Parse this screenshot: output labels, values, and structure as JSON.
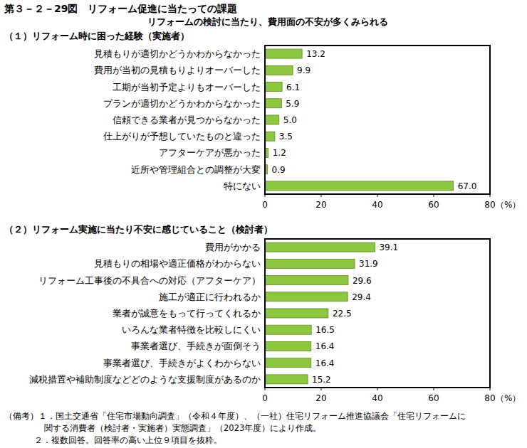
{
  "figure": {
    "title": "第３－２－29図　リフォーム促進に当たっての課題",
    "subtitle": "リフォームの検討に当たり、費用面の不安が多くみられる",
    "notes": [
      "（備考）１．国土交通省「住宅市場動向調査」（令和４年度）、（一社）住宅リフォーム推進協議会「住宅リフォームに",
      "関する消費者（検討者・実施者）実態調査」（2023年度）により作成。",
      "２．複数回答。回答率の高い上位９項目を抜粋。"
    ]
  },
  "chart_data": [
    {
      "type": "bar",
      "orientation": "horizontal",
      "title": "（１）リフォーム時に困った経験（実施者）",
      "categories": [
        "見積もりが適切かどうかわからなかった",
        "費用が当初の見積もりよりオーバーした",
        "工期が当初予定よりもオーバーした",
        "プランが適切かどうかわからなかった",
        "信頼できる業者が見つからなかった",
        "仕上がりが予想していたものと違った",
        "アフターケアが悪かった",
        "近所や管理組合との調整が大変",
        "特にない"
      ],
      "values": [
        13.2,
        9.9,
        6.1,
        5.9,
        5.0,
        3.5,
        1.2,
        0.9,
        67.0
      ],
      "value_labels": [
        "13.2",
        "9.9",
        "6.1",
        "5.9",
        "5.0",
        "3.5",
        "1.2",
        "0.9",
        "67.0"
      ],
      "color": "#8dc63f",
      "xlim": [
        0,
        80
      ],
      "xticks": [
        0,
        20,
        40,
        60,
        80
      ],
      "xlabel": "（%）",
      "grid": false,
      "data_labels": true
    },
    {
      "type": "bar",
      "orientation": "horizontal",
      "title": "（２）リフォーム実施に当たり不安に感じていること（検討者）",
      "categories": [
        "費用がかかる",
        "見積もりの相場や適正価格がわからない",
        "リフォーム工事後の不具合への対応（アフターケア）",
        "施工が適正に行われるか",
        "業者が誠意をもって行ってくれるか",
        "いろんな業者特徴を比較しにくい",
        "事業者選び、手続きが面倒そう",
        "事業者選び、手続きがよくわからない",
        "減税措置や補助制度などどのような支援制度があるのか"
      ],
      "values": [
        39.1,
        31.9,
        29.6,
        29.4,
        22.5,
        16.5,
        16.4,
        16.4,
        15.2
      ],
      "value_labels": [
        "39.1",
        "31.9",
        "29.6",
        "29.4",
        "22.5",
        "16.5",
        "16.4",
        "16.4",
        "15.2"
      ],
      "color": "#8dc63f",
      "xlim": [
        0,
        80
      ],
      "xticks": [
        0,
        20,
        40,
        60,
        80
      ],
      "xlabel": "（%）",
      "grid": false,
      "data_labels": true
    }
  ]
}
